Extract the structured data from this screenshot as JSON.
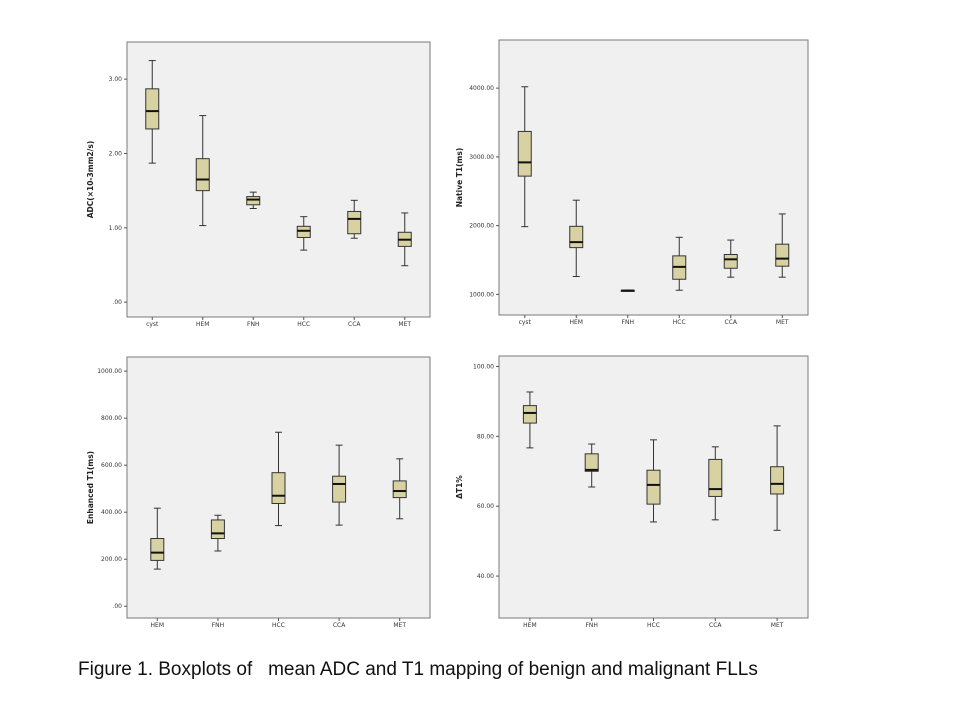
{
  "figure": {
    "caption": "Figure 1. Boxplots of   mean ADC and T1 mapping of benign and malignant FLLs"
  },
  "colors": {
    "box_fill": "#d8d2a2",
    "panel_background": "#f0f0f0",
    "stroke": "#333333"
  },
  "chart_data": [
    {
      "type": "box",
      "title": "",
      "xlabel": "",
      "ylabel": "ADC(×10-3mm2/s)",
      "categories": [
        "cyst",
        "HEM",
        "FNH",
        "HCC",
        "CCA",
        "MET"
      ],
      "ylim": [
        -0.2,
        3.5
      ],
      "yticks": [
        0,
        1,
        2,
        3
      ],
      "ytick_labels": [
        ".00",
        "1.00",
        "2.00",
        "3.00"
      ],
      "stats": [
        {
          "min": 1.87,
          "q1": 2.33,
          "median": 2.57,
          "q3": 2.87,
          "max": 3.25
        },
        {
          "min": 1.03,
          "q1": 1.5,
          "median": 1.65,
          "q3": 1.93,
          "max": 2.51
        },
        {
          "min": 1.26,
          "q1": 1.31,
          "median": 1.38,
          "q3": 1.42,
          "max": 1.48
        },
        {
          "min": 0.7,
          "q1": 0.87,
          "median": 0.96,
          "q3": 1.02,
          "max": 1.15
        },
        {
          "min": 0.86,
          "q1": 0.92,
          "median": 1.12,
          "q3": 1.22,
          "max": 1.37
        },
        {
          "min": 0.49,
          "q1": 0.75,
          "median": 0.84,
          "q3": 0.94,
          "max": 1.2
        }
      ]
    },
    {
      "type": "box",
      "title": "",
      "xlabel": "",
      "ylabel": "Native T1(ms)",
      "categories": [
        "cyst",
        "HEM",
        "FNH",
        "HCC",
        "CCA",
        "MET"
      ],
      "ylim": [
        700,
        4700
      ],
      "yticks": [
        1000,
        2000,
        3000,
        4000
      ],
      "ytick_labels": [
        "1000.00",
        "2000.00",
        "3000.00",
        "4000.00"
      ],
      "stats": [
        {
          "min": 1985,
          "q1": 2720,
          "median": 2920,
          "q3": 3370,
          "max": 4020
        },
        {
          "min": 1260,
          "q1": 1680,
          "median": 1760,
          "q3": 1990,
          "max": 2370
        },
        {
          "min": 1048,
          "q1": 1052,
          "median": 1055,
          "q3": 1058,
          "max": 1062
        },
        {
          "min": 1060,
          "q1": 1220,
          "median": 1400,
          "q3": 1560,
          "max": 1830
        },
        {
          "min": 1250,
          "q1": 1380,
          "median": 1510,
          "q3": 1580,
          "max": 1790
        },
        {
          "min": 1250,
          "q1": 1410,
          "median": 1520,
          "q3": 1730,
          "max": 2170
        }
      ]
    },
    {
      "type": "box",
      "title": "",
      "xlabel": "",
      "ylabel": "Enhanced T1(ms)",
      "categories": [
        "HEM",
        "FNH",
        "HCC",
        "CCA",
        "MET"
      ],
      "ylim": [
        -50,
        1060
      ],
      "yticks": [
        0,
        200,
        400,
        600,
        800,
        1000
      ],
      "ytick_labels": [
        ".00",
        "200.00",
        "400.00",
        "600.00",
        "800.00",
        "1000.00"
      ],
      "stats": [
        {
          "min": 158,
          "q1": 195,
          "median": 228,
          "q3": 288,
          "max": 417
        },
        {
          "min": 235,
          "q1": 288,
          "median": 310,
          "q3": 367,
          "max": 387
        },
        {
          "min": 343,
          "q1": 437,
          "median": 470,
          "q3": 568,
          "max": 740
        },
        {
          "min": 345,
          "q1": 443,
          "median": 520,
          "q3": 553,
          "max": 685
        },
        {
          "min": 372,
          "q1": 462,
          "median": 490,
          "q3": 533,
          "max": 627
        }
      ]
    },
    {
      "type": "box",
      "title": "",
      "xlabel": "",
      "ylabel": "ΔT1%",
      "categories": [
        "HEM",
        "FNH",
        "HCC",
        "CCA",
        "MET"
      ],
      "ylim": [
        28,
        103
      ],
      "yticks": [
        40,
        60,
        80,
        100
      ],
      "ytick_labels": [
        "40.00",
        "60.00",
        "80.00",
        "100.00"
      ],
      "stats": [
        {
          "min": 76.7,
          "q1": 83.8,
          "median": 86.7,
          "q3": 88.8,
          "max": 92.7
        },
        {
          "min": 65.5,
          "q1": 70.0,
          "median": 70.4,
          "q3": 75.0,
          "max": 77.8
        },
        {
          "min": 55.5,
          "q1": 60.6,
          "median": 66.1,
          "q3": 70.3,
          "max": 79.0
        },
        {
          "min": 56.1,
          "q1": 62.8,
          "median": 64.9,
          "q3": 73.4,
          "max": 77.0
        },
        {
          "min": 53.1,
          "q1": 63.5,
          "median": 66.4,
          "q3": 71.3,
          "max": 83.0
        }
      ]
    }
  ]
}
